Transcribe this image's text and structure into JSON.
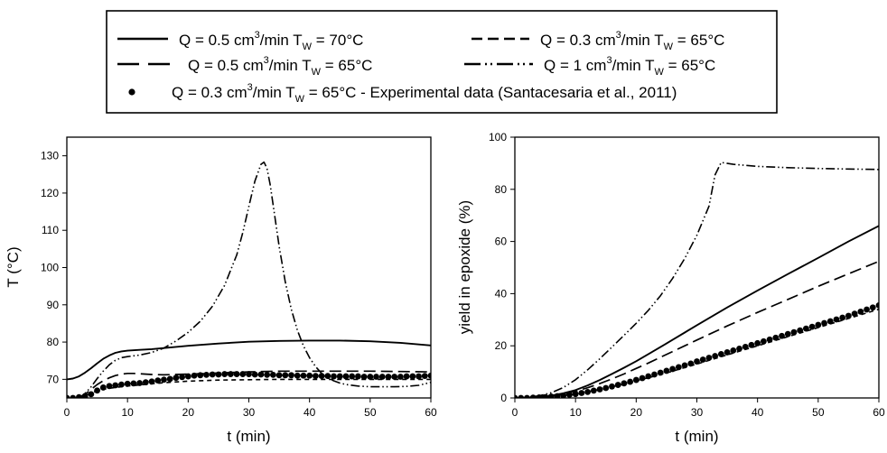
{
  "legend": {
    "entries": [
      {
        "id": "s1",
        "label": "Q = 0.5 cm",
        "sup": "3",
        "mid": "/min T",
        "sub": "W",
        "tail": " = 70°C",
        "style": "solid"
      },
      {
        "id": "s2",
        "label": "Q = 0.3 cm",
        "sup": "3",
        "mid": "/min T",
        "sub": "W",
        "tail": " = 65°C",
        "style": "short-dash"
      },
      {
        "id": "s3",
        "label": "Q = 0.5 cm",
        "sup": "3",
        "mid": "/min T",
        "sub": "W",
        "tail": " = 65°C",
        "style": "long-dash"
      },
      {
        "id": "s4",
        "label": "Q = 1 cm",
        "sup": "3",
        "mid": "/min T",
        "sub": "W",
        "tail": " = 65°C",
        "style": "dash-dot-dot"
      },
      {
        "id": "s5",
        "label": "Q = 0.3 cm",
        "sup": "3",
        "mid": "/min T",
        "sub": "W",
        "tail": " = 65°C - Experimental data (Santacesaria et al., 2011)",
        "style": "dots"
      }
    ]
  },
  "chart_data": [
    {
      "type": "line",
      "xlabel": "t (min)",
      "ylabel": "T (°C)",
      "xlim": [
        0,
        60
      ],
      "ylim": [
        65,
        135
      ],
      "xticks": [
        "0",
        "10",
        "20",
        "30",
        "40",
        "50",
        "60"
      ],
      "yticks": [
        "70",
        "80",
        "90",
        "100",
        "110",
        "120",
        "130"
      ],
      "series": [
        {
          "id": "s1",
          "x": [
            0,
            1,
            2,
            3,
            4,
            5,
            6,
            7,
            8,
            9,
            10,
            12,
            14,
            16,
            20,
            25,
            30,
            35,
            40,
            45,
            50,
            55,
            60
          ],
          "y": [
            70,
            70.2,
            70.8,
            71.8,
            73,
            74.3,
            75.5,
            76.4,
            77.1,
            77.5,
            77.7,
            77.9,
            78.1,
            78.4,
            79,
            79.6,
            80.1,
            80.3,
            80.4,
            80.4,
            80.2,
            79.8,
            79.1
          ]
        },
        {
          "id": "s2",
          "x": [
            2,
            3,
            4,
            5,
            6,
            7,
            8,
            9,
            10,
            12,
            14,
            16,
            20,
            25,
            30,
            35,
            40,
            45,
            50,
            55,
            60
          ],
          "y": [
            65,
            65.7,
            66.3,
            66.9,
            67.3,
            67.6,
            67.8,
            68,
            68.2,
            68.5,
            68.8,
            69.1,
            69.5,
            69.8,
            69.9,
            70,
            70,
            70,
            70,
            70,
            70
          ]
        },
        {
          "id": "s3",
          "x": [
            2,
            3,
            4,
            5,
            6,
            7,
            8,
            9,
            10,
            11,
            12,
            14,
            16,
            20,
            25,
            30,
            35,
            40,
            45,
            50,
            55,
            60
          ],
          "y": [
            65,
            66,
            67.3,
            68.6,
            69.6,
            70.4,
            71,
            71.4,
            71.6,
            71.6,
            71.5,
            71.3,
            71.2,
            71.4,
            71.7,
            72,
            72.2,
            72.2,
            72.2,
            72.2,
            72.1,
            72
          ]
        },
        {
          "id": "s4",
          "x": [
            2,
            3,
            4,
            5,
            6,
            7,
            8,
            9,
            10,
            11,
            12,
            14,
            16,
            18,
            20,
            22,
            24,
            26,
            28,
            29,
            30,
            31,
            32,
            32.5,
            33,
            33.5,
            34,
            35,
            36,
            37,
            38,
            39,
            40,
            41,
            42,
            43,
            44,
            45,
            46,
            48,
            50,
            52,
            54,
            56,
            58,
            60
          ],
          "y": [
            65,
            66.2,
            68,
            70.2,
            72.2,
            73.9,
            75.1,
            75.8,
            76.1,
            76.3,
            76.5,
            77.2,
            78.4,
            80.3,
            82.6,
            85.6,
            89.6,
            95.2,
            103.4,
            109.4,
            116.4,
            123.2,
            127.7,
            128.3,
            126.6,
            122.4,
            116.8,
            105.6,
            96.2,
            88.8,
            83.2,
            79,
            75.8,
            73.4,
            71.6,
            70.4,
            69.6,
            69,
            68.6,
            68.2,
            68,
            68,
            68,
            68.1,
            68.4,
            69.2
          ]
        },
        {
          "id": "s5",
          "x": [
            0,
            1,
            2,
            3,
            4,
            5,
            6,
            7,
            8,
            9,
            10,
            11,
            12,
            13,
            14,
            15,
            16,
            17,
            18,
            19,
            20,
            21,
            22,
            23,
            24,
            25,
            26,
            27,
            28,
            29,
            30,
            31,
            32,
            33,
            34,
            35,
            36,
            37,
            38,
            39,
            40,
            41,
            42,
            43,
            44,
            45,
            46,
            47,
            48,
            49,
            50,
            51,
            52,
            53,
            54,
            55,
            56,
            57,
            58,
            59,
            60
          ],
          "y": [
            65,
            65,
            65.2,
            65.5,
            66,
            67,
            67.8,
            68.2,
            68.4,
            68.6,
            68.8,
            68.9,
            69,
            69.2,
            69.4,
            69.7,
            69.9,
            70.1,
            70.4,
            70.6,
            70.8,
            71,
            71.1,
            71.2,
            71.3,
            71.3,
            71.4,
            71.4,
            71.4,
            71.4,
            71.4,
            71.3,
            71.3,
            71.2,
            71.2,
            71.1,
            71.1,
            71.1,
            71,
            71,
            71,
            70.9,
            70.9,
            70.9,
            70.8,
            70.8,
            70.8,
            70.8,
            70.8,
            70.7,
            70.7,
            70.7,
            70.7,
            70.7,
            70.7,
            70.7,
            70.8,
            70.8,
            70.8,
            70.9,
            71
          ]
        }
      ]
    },
    {
      "type": "line",
      "xlabel": "t (min)",
      "ylabel": "yield in epoxide (%)",
      "xlim": [
        0,
        60
      ],
      "ylim": [
        0,
        100
      ],
      "xticks": [
        "0",
        "10",
        "20",
        "30",
        "40",
        "50",
        "60"
      ],
      "yticks": [
        "0",
        "20",
        "40",
        "60",
        "80",
        "100"
      ],
      "series": [
        {
          "id": "s1",
          "x": [
            0,
            2,
            4,
            6,
            8,
            10,
            12,
            14,
            16,
            18,
            20,
            22,
            24,
            26,
            28,
            30,
            35,
            40,
            45,
            50,
            55,
            60
          ],
          "y": [
            0,
            0.1,
            0.4,
            0.9,
            1.8,
            3,
            4.8,
            6.9,
            9.2,
            11.6,
            14.1,
            16.8,
            19.5,
            22.3,
            25.1,
            27.9,
            34.7,
            41.2,
            47.5,
            53.7,
            60,
            66
          ]
        },
        {
          "id": "s2",
          "x": [
            0,
            2,
            4,
            6,
            8,
            10,
            12,
            14,
            16,
            18,
            20,
            25,
            30,
            35,
            40,
            45,
            50,
            55,
            60
          ],
          "y": [
            0,
            0,
            0.2,
            0.5,
            1,
            1.6,
            2.4,
            3.3,
            4.3,
            5.3,
            6.5,
            9.6,
            13,
            16.5,
            20,
            23.5,
            27,
            30.5,
            34
          ]
        },
        {
          "id": "s3",
          "x": [
            0,
            2,
            4,
            6,
            8,
            10,
            12,
            14,
            16,
            18,
            20,
            22,
            24,
            26,
            28,
            30,
            35,
            40,
            45,
            50,
            55,
            60
          ],
          "y": [
            0,
            0.1,
            0.3,
            0.8,
            1.5,
            2.6,
            3.9,
            5.5,
            7.3,
            9.2,
            11.3,
            13.4,
            15.6,
            17.8,
            20,
            22.2,
            27.6,
            32.8,
            37.8,
            42.8,
            47.6,
            52.4
          ]
        },
        {
          "id": "s4",
          "x": [
            0,
            2,
            4,
            6,
            8,
            10,
            12,
            14,
            16,
            18,
            20,
            22,
            24,
            26,
            28,
            30,
            32,
            33,
            34,
            36,
            40,
            45,
            50,
            55,
            60
          ],
          "y": [
            0,
            0.2,
            0.8,
            2,
            4,
            7,
            10.8,
            15,
            19.5,
            24,
            28.6,
            33.6,
            39.2,
            45.8,
            53.5,
            62.4,
            73.5,
            85.5,
            90.3,
            89.6,
            88.8,
            88.3,
            88,
            87.8,
            87.6
          ]
        },
        {
          "id": "s5",
          "x": [
            0,
            1,
            2,
            3,
            4,
            5,
            6,
            7,
            8,
            9,
            10,
            11,
            12,
            13,
            14,
            15,
            16,
            17,
            18,
            19,
            20,
            21,
            22,
            23,
            24,
            25,
            26,
            27,
            28,
            29,
            30,
            31,
            32,
            33,
            34,
            35,
            36,
            37,
            38,
            39,
            40,
            41,
            42,
            43,
            44,
            45,
            46,
            47,
            48,
            49,
            50,
            51,
            52,
            53,
            54,
            55,
            56,
            57,
            58,
            59,
            60
          ],
          "y": [
            0,
            0,
            0,
            0.1,
            0.2,
            0.3,
            0.5,
            0.7,
            0.9,
            1.2,
            1.5,
            1.9,
            2.3,
            2.8,
            3.3,
            3.8,
            4.4,
            5,
            5.6,
            6.2,
            6.9,
            7.6,
            8.3,
            9,
            9.7,
            10.4,
            11.1,
            11.8,
            12.5,
            13.2,
            14,
            14.7,
            15.4,
            16.1,
            16.8,
            17.5,
            18.2,
            18.9,
            19.6,
            20.3,
            21,
            21.7,
            22.4,
            23.1,
            23.8,
            24.5,
            25.2,
            25.9,
            26.6,
            27.3,
            28,
            28.7,
            29.4,
            30.1,
            30.8,
            31.5,
            32.3,
            33.1,
            33.9,
            34.7,
            35.5
          ]
        }
      ]
    }
  ]
}
